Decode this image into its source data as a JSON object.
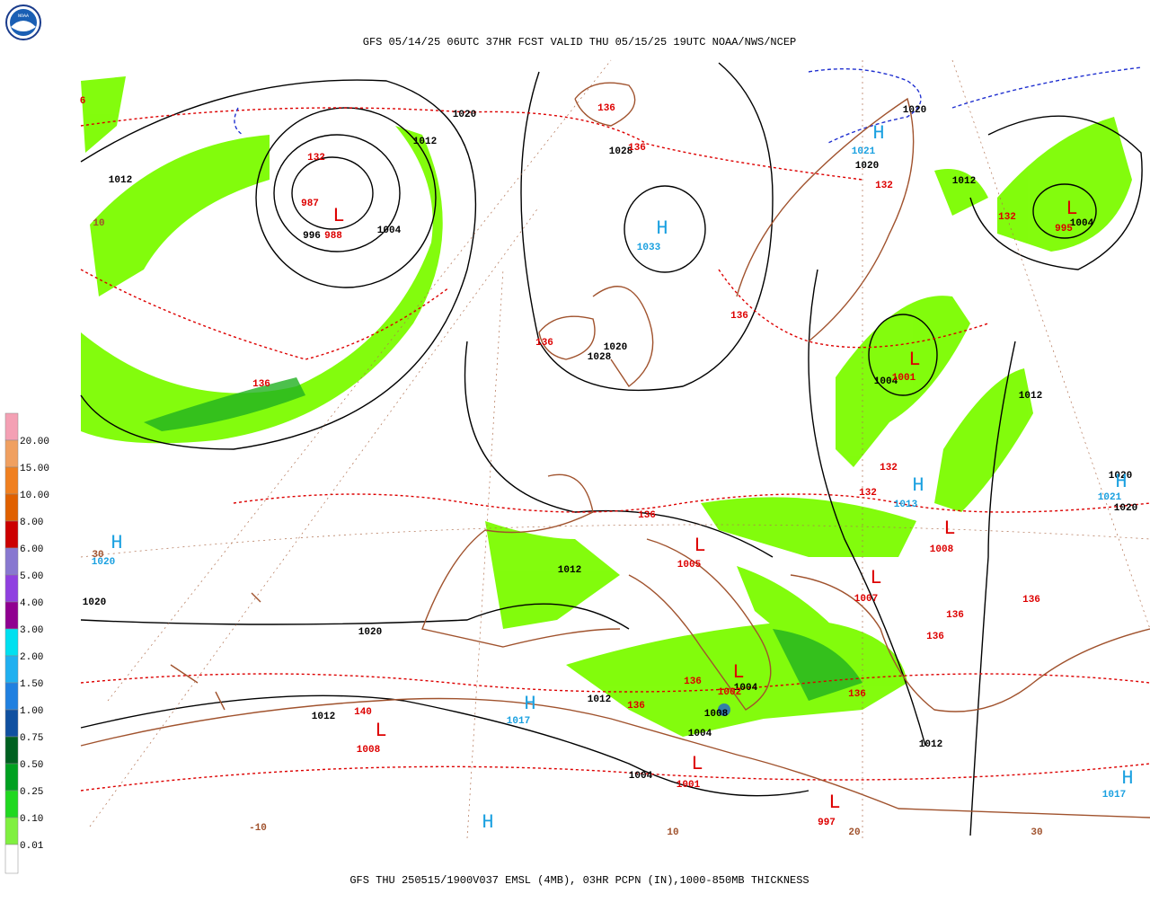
{
  "logo": {
    "text": "NOAA"
  },
  "header": {
    "title": "GFS 05/14/25 06UTC 37HR FCST VALID THU 05/15/25 19UTC NOAA/NWS/NCEP"
  },
  "footer": {
    "caption": "GFS THU 250515/1900V037 EMSL (4MB), 03HR PCPN (IN),1000-850MB THICKNESS"
  },
  "legend": {
    "items": [
      {
        "label": "20.00",
        "color": "#f4a0b4"
      },
      {
        "label": "15.00",
        "color": "#f0a060"
      },
      {
        "label": "10.00",
        "color": "#f08020"
      },
      {
        "label": "8.00",
        "color": "#e06000"
      },
      {
        "label": "6.00",
        "color": "#cc0000"
      },
      {
        "label": "5.00",
        "color": "#8878d0"
      },
      {
        "label": "4.00",
        "color": "#9040e0"
      },
      {
        "label": "3.00",
        "color": "#900090"
      },
      {
        "label": "2.00",
        "color": "#00e0f0"
      },
      {
        "label": "1.50",
        "color": "#20b0f0"
      },
      {
        "label": "1.00",
        "color": "#2080e0"
      },
      {
        "label": "0.75",
        "color": "#1050a0"
      },
      {
        "label": "0.50",
        "color": "#006020"
      },
      {
        "label": "0.25",
        "color": "#00a020"
      },
      {
        "label": "0.10",
        "color": "#20d820"
      },
      {
        "label": "0.01",
        "color": "#80f040"
      }
    ]
  },
  "map_labels": [
    {
      "text": "1020",
      "color": "#000000"
    },
    {
      "text": "1012",
      "color": "#000000"
    },
    {
      "text": "1012",
      "color": "#000000"
    },
    {
      "text": "1004",
      "color": "#000000"
    },
    {
      "text": "996",
      "color": "#000000"
    },
    {
      "text": "L",
      "color": "#dd0000"
    },
    {
      "text": "988",
      "color": "#dd0000"
    },
    {
      "text": "987",
      "color": "#dd0000"
    },
    {
      "text": "132",
      "color": "#dd0000"
    },
    {
      "text": "H",
      "color": "#1aa0e0"
    },
    {
      "text": "1033",
      "color": "#1aa0e0"
    },
    {
      "text": "1028",
      "color": "#000000"
    },
    {
      "text": "136",
      "color": "#dd0000"
    },
    {
      "text": "136",
      "color": "#dd0000"
    },
    {
      "text": "H",
      "color": "#1aa0e0"
    },
    {
      "text": "1021",
      "color": "#1aa0e0"
    },
    {
      "text": "1020",
      "color": "#000000"
    },
    {
      "text": "1020",
      "color": "#000000"
    },
    {
      "text": "132",
      "color": "#dd0000"
    },
    {
      "text": "1012",
      "color": "#000000"
    },
    {
      "text": "132",
      "color": "#dd0000"
    },
    {
      "text": "L",
      "color": "#dd0000"
    },
    {
      "text": "1004",
      "color": "#000000"
    },
    {
      "text": "995",
      "color": "#dd0000"
    },
    {
      "text": "136",
      "color": "#dd0000"
    },
    {
      "text": "1020",
      "color": "#000000"
    },
    {
      "text": "1028",
      "color": "#000000"
    },
    {
      "text": "136",
      "color": "#dd0000"
    },
    {
      "text": "L",
      "color": "#dd0000"
    },
    {
      "text": "1004",
      "color": "#000000"
    },
    {
      "text": "1001",
      "color": "#dd0000"
    },
    {
      "text": "1012",
      "color": "#000000"
    },
    {
      "text": "136",
      "color": "#dd0000"
    },
    {
      "text": "132",
      "color": "#dd0000"
    },
    {
      "text": "132",
      "color": "#dd0000"
    },
    {
      "text": "H",
      "color": "#1aa0e0"
    },
    {
      "text": "1013",
      "color": "#1aa0e0"
    },
    {
      "text": "L",
      "color": "#dd0000"
    },
    {
      "text": "1008",
      "color": "#dd0000"
    },
    {
      "text": "1020",
      "color": "#000000"
    },
    {
      "text": "H",
      "color": "#1aa0e0"
    },
    {
      "text": "1021",
      "color": "#1aa0e0"
    },
    {
      "text": "1020",
      "color": "#000000"
    },
    {
      "text": "136",
      "color": "#dd0000"
    },
    {
      "text": "L",
      "color": "#dd0000"
    },
    {
      "text": "1005",
      "color": "#dd0000"
    },
    {
      "text": "1012",
      "color": "#000000"
    },
    {
      "text": "L",
      "color": "#dd0000"
    },
    {
      "text": "1007",
      "color": "#dd0000"
    },
    {
      "text": "136",
      "color": "#dd0000"
    },
    {
      "text": "136",
      "color": "#dd0000"
    },
    {
      "text": "136",
      "color": "#dd0000"
    },
    {
      "text": "H",
      "color": "#1aa0e0"
    },
    {
      "text": "1020",
      "color": "#1aa0e0"
    },
    {
      "text": "30",
      "color": "#a0522d"
    },
    {
      "text": "1020",
      "color": "#000000"
    },
    {
      "text": "1020",
      "color": "#000000"
    },
    {
      "text": "1012",
      "color": "#000000"
    },
    {
      "text": "136",
      "color": "#dd0000"
    },
    {
      "text": "136",
      "color": "#dd0000"
    },
    {
      "text": "L",
      "color": "#dd0000"
    },
    {
      "text": "1004",
      "color": "#000000"
    },
    {
      "text": "1002",
      "color": "#dd0000"
    },
    {
      "text": "H",
      "color": "#1aa0e0"
    },
    {
      "text": "1017",
      "color": "#1aa0e0"
    },
    {
      "text": "136",
      "color": "#dd0000"
    },
    {
      "text": "1008",
      "color": "#000000"
    },
    {
      "text": "1004",
      "color": "#000000"
    },
    {
      "text": "1012",
      "color": "#000000"
    },
    {
      "text": "140",
      "color": "#dd0000"
    },
    {
      "text": "1012",
      "color": "#000000"
    },
    {
      "text": "L",
      "color": "#dd0000"
    },
    {
      "text": "1008",
      "color": "#dd0000"
    },
    {
      "text": "L",
      "color": "#dd0000"
    },
    {
      "text": "1001",
      "color": "#dd0000"
    },
    {
      "text": "1004",
      "color": "#000000"
    },
    {
      "text": "L",
      "color": "#dd0000"
    },
    {
      "text": "997",
      "color": "#dd0000"
    },
    {
      "text": "H",
      "color": "#1aa0e0"
    },
    {
      "text": "H",
      "color": "#1aa0e0"
    },
    {
      "text": "1017",
      "color": "#1aa0e0"
    },
    {
      "text": "-10",
      "color": "#a0522d"
    },
    {
      "text": "10",
      "color": "#a0522d"
    },
    {
      "text": "20",
      "color": "#a0522d"
    },
    {
      "text": "30",
      "color": "#a0522d"
    },
    {
      "text": "10",
      "color": "#a0522d"
    },
    {
      "text": "6",
      "color": "#dd0000"
    }
  ]
}
